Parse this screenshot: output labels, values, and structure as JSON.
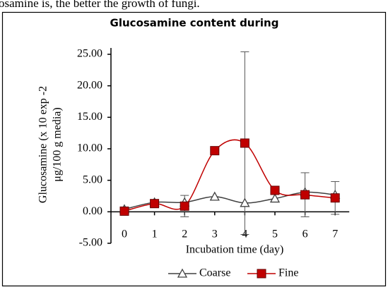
{
  "text_above": "osamine is, the better the growth of fungi.",
  "chart_data": {
    "type": "line",
    "title": "Glucosamine content during",
    "ylabel": [
      "Glucosamine (x 10 exp -2",
      "μg/100 g media)"
    ],
    "xlabel": "Incubation time (day)",
    "categories": [
      "0",
      "1",
      "2",
      "3",
      "4",
      "5",
      "6",
      "7"
    ],
    "series": [
      {
        "name": "Coarse",
        "color": "#404040",
        "marker": "triangle",
        "values": [
          0.4,
          1.5,
          1.5,
          2.4,
          1.4,
          2.1,
          3.1,
          2.7
        ]
      },
      {
        "name": "Fine",
        "color": "#c00000",
        "marker": "square",
        "values": [
          0.1,
          1.3,
          0.9,
          9.7,
          10.9,
          3.4,
          2.7,
          2.2
        ],
        "errors": [
          null,
          null,
          1.7,
          null,
          14.5,
          null,
          3.5,
          2.6
        ]
      }
    ],
    "ylim": [
      -5,
      25
    ],
    "yticks": [
      {
        "value": -5,
        "label": "-5.00"
      },
      {
        "value": 0,
        "label": "0.00"
      },
      {
        "value": 5,
        "label": "5.00"
      },
      {
        "value": 10,
        "label": "10.00"
      },
      {
        "value": 15,
        "label": "15.00"
      },
      {
        "value": 20,
        "label": "20.00"
      },
      {
        "value": 25,
        "label": "25.00"
      }
    ],
    "smooth": true,
    "legend": "bottom"
  }
}
